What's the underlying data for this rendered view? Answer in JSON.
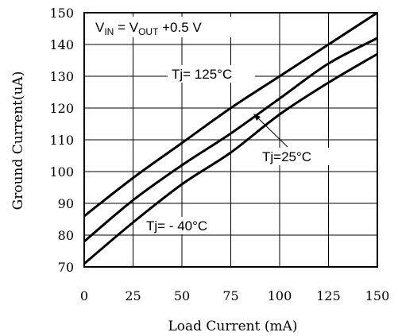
{
  "chart_data": {
    "type": "line",
    "xlabel": "Load Current (mA)",
    "ylabel": "Ground Current(uA)",
    "xlim": [
      0,
      150
    ],
    "ylim": [
      70,
      150
    ],
    "xticks": [
      0,
      25,
      50,
      75,
      100,
      125,
      150
    ],
    "yticks": [
      70,
      80,
      90,
      100,
      110,
      120,
      130,
      140,
      150
    ],
    "grid": true,
    "condition": {
      "v1": "V",
      "v1_sub": "IN",
      "eq": " = V",
      "v2_sub": "OUT",
      "tail": " +0.5 V"
    },
    "series": [
      {
        "name": "Tj= 125°C",
        "x": [
          0,
          25,
          50,
          75,
          100,
          125,
          150
        ],
        "y": [
          86,
          98,
          109,
          120,
          130,
          140,
          150
        ]
      },
      {
        "name": "Tj=25°C",
        "x": [
          0,
          25,
          50,
          75,
          100,
          125,
          150
        ],
        "y": [
          78,
          91,
          102,
          112,
          123,
          134,
          142
        ]
      },
      {
        "name": "Tj= - 40°C",
        "x": [
          0,
          25,
          50,
          75,
          100,
          125,
          150
        ],
        "y": [
          71,
          84,
          96,
          106,
          118,
          128,
          137
        ]
      }
    ]
  }
}
